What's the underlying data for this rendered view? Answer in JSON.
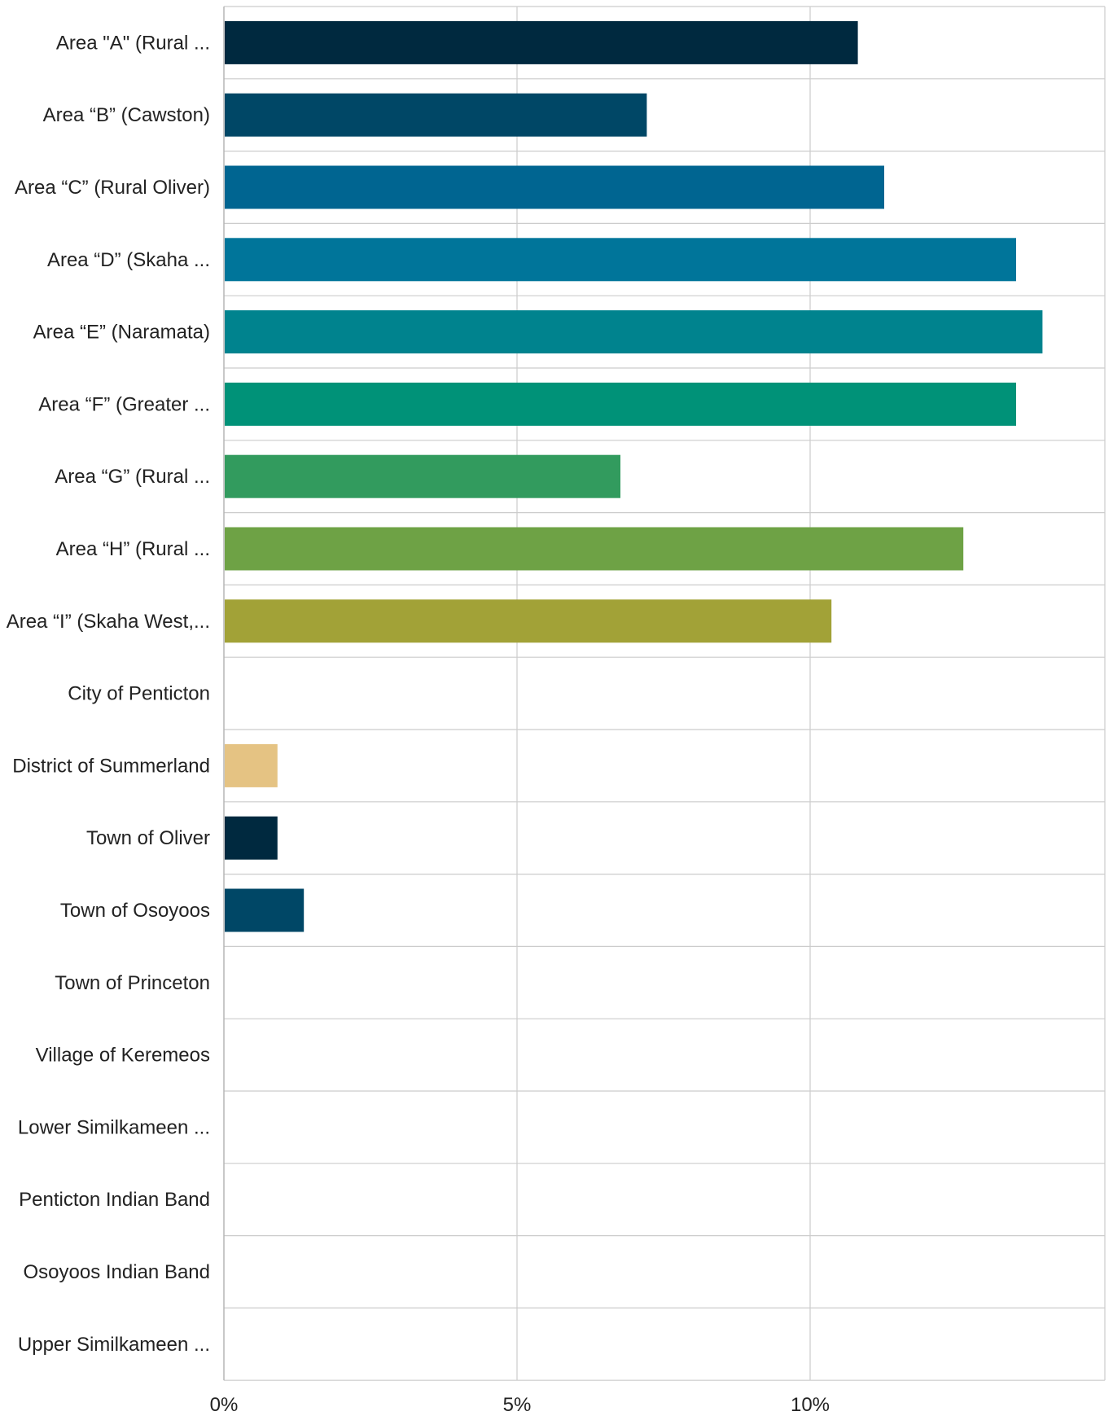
{
  "chart_data": {
    "type": "bar",
    "orientation": "horizontal",
    "categories": [
      "Area \"A\" (Rural ...",
      "Area “B” (Cawston)",
      "Area “C” (Rural Oliver)",
      "Area “D” (Skaha ...",
      "Area “E” (Naramata)",
      "Area “F” (Greater ...",
      "Area “G” (Rural ...",
      "Area “H” (Rural ...",
      "Area “I” (Skaha West,...",
      "City of Penticton",
      "District of Summerland",
      "Town of Oliver",
      "Town of Osoyoos",
      "Town of Princeton",
      "Village of Keremeos",
      "Lower Similkameen ...",
      "Penticton Indian Band",
      "Osoyoos Indian Band",
      "Upper Similkameen ..."
    ],
    "values": [
      10.8,
      7.2,
      11.25,
      13.5,
      13.95,
      13.5,
      6.75,
      12.6,
      10.35,
      0,
      0.9,
      0.9,
      1.35,
      0,
      0,
      0,
      0,
      0,
      0
    ],
    "colors": [
      "#00293f",
      "#004766",
      "#006591",
      "#00759a",
      "#00838e",
      "#009278",
      "#329b5e",
      "#6ea245",
      "#a2a237",
      "#c9b85e",
      "#e5c383",
      "#00293f",
      "#004766",
      "#006591",
      "#00759a",
      "#00838e",
      "#009278",
      "#329b5e",
      "#6ea245"
    ],
    "xlim": [
      0,
      15
    ],
    "xticks": [
      0,
      5,
      10
    ],
    "xtick_labels": [
      "0%",
      "5%",
      "10%"
    ],
    "title": "",
    "xlabel": "",
    "ylabel": "",
    "grid": true
  }
}
